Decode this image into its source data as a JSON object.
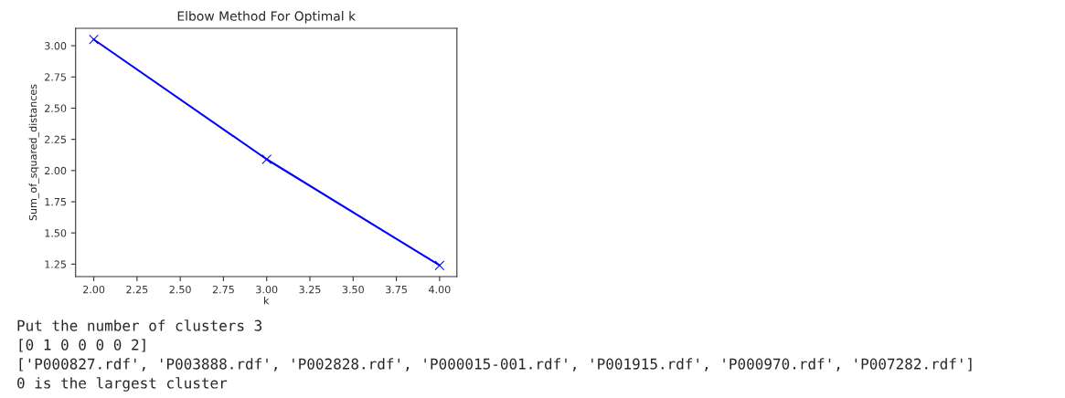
{
  "chart_data": {
    "type": "line",
    "title": "Elbow Method For Optimal k",
    "xlabel": "k",
    "ylabel": "Sum_of_squared_distances",
    "x": [
      2,
      3,
      4
    ],
    "series": [
      {
        "color": "#0000ff",
        "values": [
          3.05,
          2.09,
          1.24
        ],
        "marker": "cross"
      }
    ],
    "xlim": [
      1.895,
      4.1
    ],
    "xticks": [
      {
        "value": 2,
        "label": "2.00"
      },
      {
        "value": 2.25,
        "label": "2.25"
      },
      {
        "value": 2.5,
        "label": "2.50"
      },
      {
        "value": 2.75,
        "label": "2.75"
      },
      {
        "value": 3,
        "label": "3.00"
      },
      {
        "value": 3.25,
        "label": "3.25"
      },
      {
        "value": 3.5,
        "label": "3.50"
      },
      {
        "value": 3.75,
        "label": "3.75"
      },
      {
        "value": 4,
        "label": "4.00"
      }
    ],
    "ylim": [
      1.15,
      3.14
    ],
    "yticks": [
      {
        "value": 1.25,
        "label": "1.25"
      },
      {
        "value": 1.5,
        "label": "1.50"
      },
      {
        "value": 1.75,
        "label": "1.75"
      },
      {
        "value": 2,
        "label": "2.00"
      },
      {
        "value": 2.25,
        "label": "2.25"
      },
      {
        "value": 2.5,
        "label": "2.50"
      },
      {
        "value": 2.75,
        "label": "2.75"
      },
      {
        "value": 3,
        "label": "3.00"
      }
    ],
    "annotations": [
      "Put the number of clusters 3",
      "[0 1 0 0 0 0 2]",
      "['P000827.rdf', 'P003888.rdf', 'P002828.rdf', 'P000015-001.rdf', 'P001915.rdf', 'P000970.rdf', 'P007282.rdf']",
      "0 is the largest cluster"
    ]
  }
}
